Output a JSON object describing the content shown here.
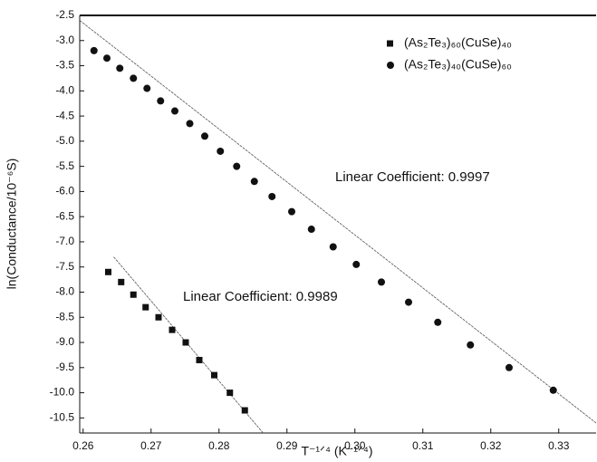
{
  "chart_data": {
    "type": "scatter",
    "xlabel": "T⁻¹ᐟ⁴ (K⁻¹ᐟ⁴)",
    "ylabel": "ln(Conductance/10⁻⁶S)",
    "xlim": [
      0.2595,
      0.3355
    ],
    "ylim": [
      -10.8,
      -2.5
    ],
    "xticks": [
      0.26,
      0.27,
      0.28,
      0.29,
      {
        "value": 0.3,
        "label": "0.30"
      },
      0.31,
      0.32,
      0.33
    ],
    "yticks": [
      -2.5,
      {
        "value": -3,
        "label": "-3.0"
      },
      -3.5,
      {
        "value": -4,
        "label": "-4.0"
      },
      -4.5,
      {
        "value": -5,
        "label": "-5.0"
      },
      -5.5,
      {
        "value": -6,
        "label": "-6.0"
      },
      -6.5,
      {
        "value": -7,
        "label": "-7.0"
      },
      -7.5,
      {
        "value": -8,
        "label": "-8.0"
      },
      -8.5,
      {
        "value": -9,
        "label": "-9.0"
      },
      -9.5,
      {
        "value": -10,
        "label": "-10.0"
      },
      -10.5
    ],
    "series": [
      {
        "name": "(As₂Te₃)₆₀(CuSe)₄₀",
        "marker": "square",
        "color": "#111111",
        "x": [
          0.2637,
          0.2656,
          0.2674,
          0.2692,
          0.2711,
          0.2731,
          0.2751,
          0.2771,
          0.2793,
          0.2816,
          0.2838
        ],
        "values": [
          -7.6,
          -7.8,
          -8.05,
          -8.3,
          -8.5,
          -8.75,
          -9.0,
          -9.35,
          -9.65,
          -10.0,
          -10.35
        ],
        "fit": {
          "x": [
            0.2645,
            0.2865
          ],
          "y": [
            -7.3,
            -10.8
          ]
        }
      },
      {
        "name": "(As₂Te₃)₄₀(CuSe)₆₀",
        "marker": "circle",
        "color": "#111111",
        "x": [
          0.2616,
          0.2635,
          0.2654,
          0.2674,
          0.2694,
          0.2714,
          0.2735,
          0.2757,
          0.2779,
          0.2802,
          0.2826,
          0.2852,
          0.2878,
          0.2907,
          0.2936,
          0.2968,
          0.3002,
          0.3039,
          0.3079,
          0.3122,
          0.317,
          0.3227,
          0.3292
        ],
        "values": [
          -3.2,
          -3.35,
          -3.55,
          -3.75,
          -3.95,
          -4.2,
          -4.4,
          -4.65,
          -4.9,
          -5.2,
          -5.5,
          -5.8,
          -6.1,
          -6.4,
          -6.75,
          -7.1,
          -7.45,
          -7.8,
          -8.2,
          -8.6,
          -9.05,
          -9.5,
          -9.95
        ],
        "fit": {
          "x": [
            0.2595,
            0.3355
          ],
          "y": [
            -2.6,
            -10.6
          ]
        }
      }
    ],
    "annotations": [
      "Linear Coefficient: 0.9997",
      "Linear Coefficient: 0.9989"
    ]
  }
}
